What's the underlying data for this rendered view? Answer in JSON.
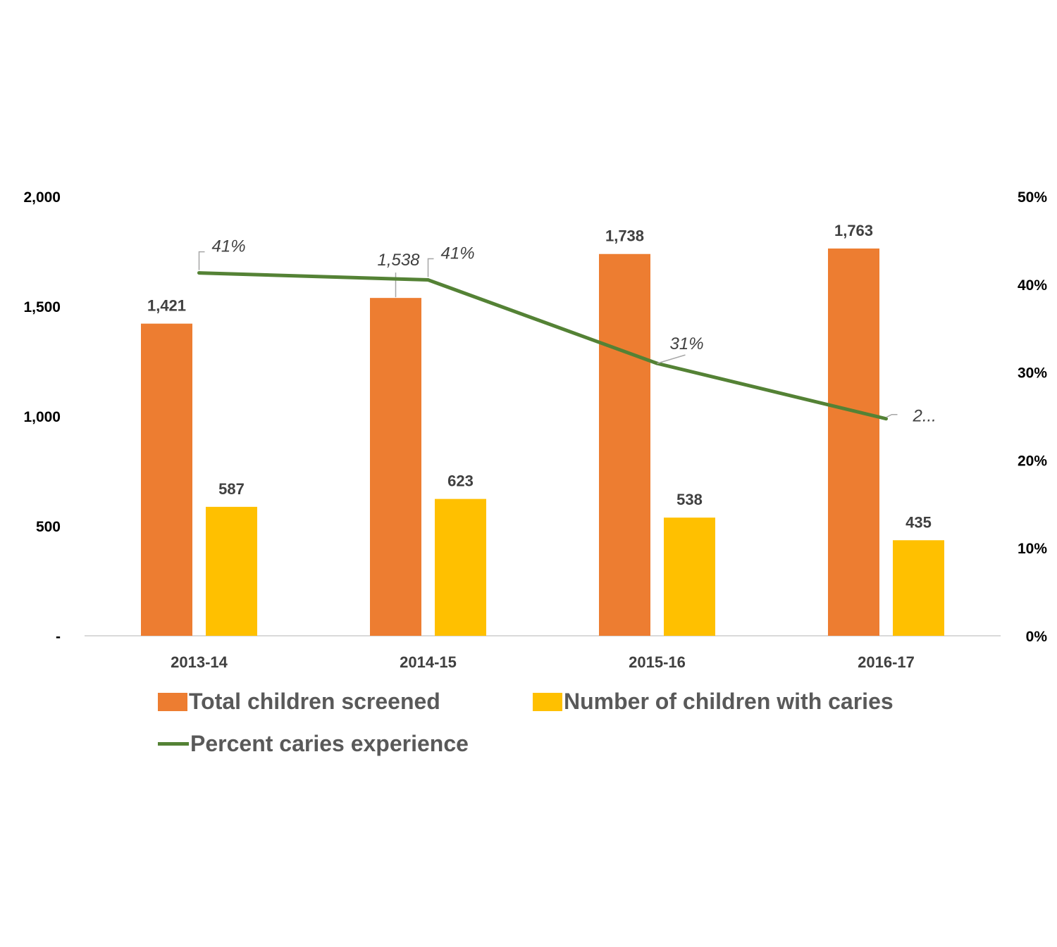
{
  "chart_data": {
    "type": "bar",
    "categories": [
      "2013-14",
      "2014-15",
      "2015-16",
      "2016-17"
    ],
    "series": [
      {
        "name": "Total children screened",
        "kind": "bar",
        "axis": "left",
        "color": "#ed7d31",
        "values": [
          1421,
          1538,
          1738,
          1763
        ],
        "labels": [
          "1,421",
          "1,538",
          "1,738",
          "1,763"
        ]
      },
      {
        "name": "Number of children with caries",
        "kind": "bar",
        "axis": "left",
        "color": "#ffc000",
        "values": [
          587,
          623,
          538,
          435
        ],
        "labels": [
          "587",
          "623",
          "538",
          "435"
        ]
      },
      {
        "name": "Percent caries experience",
        "kind": "line",
        "axis": "right",
        "color": "#548235",
        "values": [
          41.3,
          40.5,
          31.0,
          24.7
        ],
        "labels": [
          "41%",
          "41%",
          "31%",
          "2..."
        ]
      }
    ],
    "y_left": {
      "ylim": [
        0,
        2000
      ],
      "ticks": [
        0,
        500,
        1000,
        1500,
        2000
      ],
      "tick_labels": [
        "-",
        "500",
        "1,000",
        "1,500",
        "2,000"
      ]
    },
    "y_right": {
      "ylim": [
        0,
        50
      ],
      "ticks": [
        0,
        10,
        20,
        30,
        40,
        50
      ],
      "tick_labels": [
        "0%",
        "10%",
        "20%",
        "30%",
        "40%",
        "50%"
      ]
    },
    "grid": false,
    "legend_position": "bottom"
  }
}
